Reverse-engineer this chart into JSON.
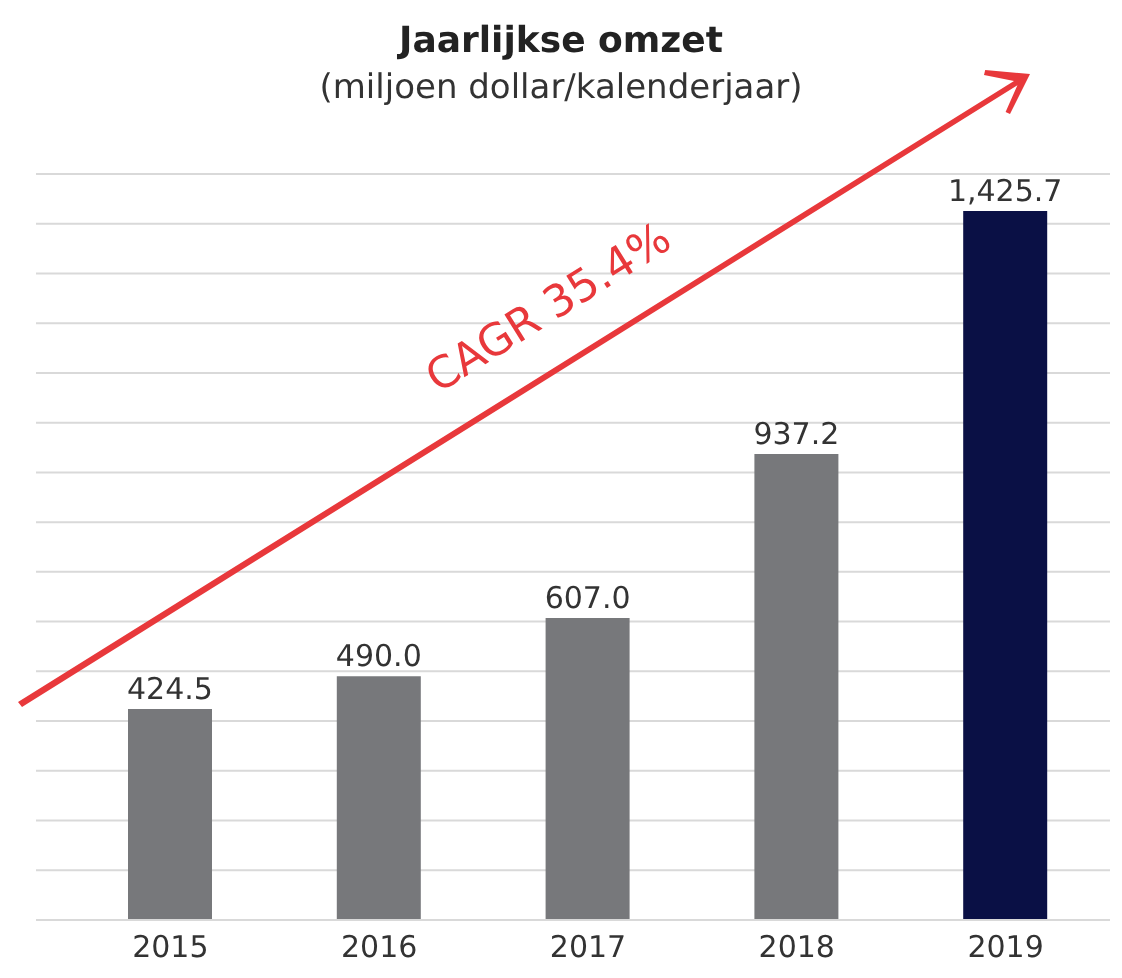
{
  "chart_data": {
    "type": "bar",
    "title": "Jaarlijkse omzet",
    "subtitle": "(miljoen dollar/kalenderjaar)",
    "categories": [
      "2015",
      "2016",
      "2017",
      "2018",
      "2019"
    ],
    "values": [
      424.5,
      490.0,
      607.0,
      937.2,
      1425.7
    ],
    "value_labels": [
      "424.5",
      "490.0",
      "607.0",
      "937.2",
      "1,425.7"
    ],
    "colors": [
      "#77787b",
      "#77787b",
      "#77787b",
      "#77787b",
      "#0a1045"
    ],
    "ylim": [
      0,
      1500
    ],
    "yticks": [
      {
        "value": 0,
        "label": null
      },
      {
        "value": 100,
        "label": null
      },
      {
        "value": 200,
        "label": null
      },
      {
        "value": 300,
        "label": null
      },
      {
        "value": 400,
        "label": null
      },
      {
        "value": 500,
        "label": null
      },
      {
        "value": 600,
        "label": null
      },
      {
        "value": 700,
        "label": null
      },
      {
        "value": 800,
        "label": null
      },
      {
        "value": 900,
        "label": null
      },
      {
        "value": 1000,
        "label": null
      },
      {
        "value": 1100,
        "label": null
      },
      {
        "value": 1200,
        "label": null
      },
      {
        "value": 1300,
        "label": null
      },
      {
        "value": 1400,
        "label": null
      },
      {
        "value": 1500,
        "label": null
      }
    ],
    "tick_labels": "x",
    "grid": "y",
    "annotations": [
      "CAGR 35.4%"
    ]
  }
}
